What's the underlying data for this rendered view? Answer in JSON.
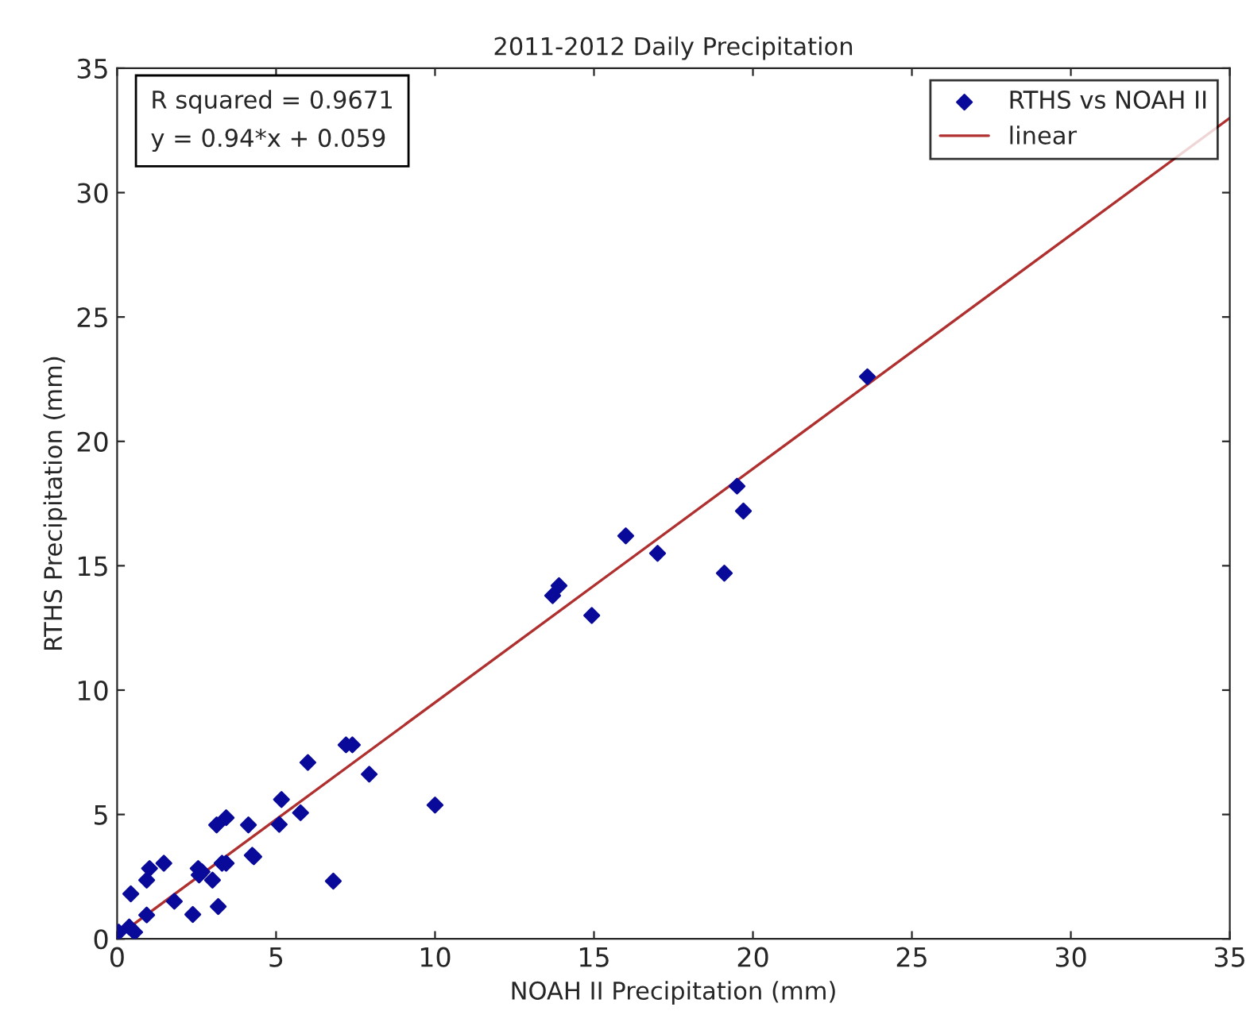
{
  "chart_data": {
    "type": "scatter",
    "title": "2011-2012 Daily Precipitation",
    "xlabel": "NOAH II Precipitation (mm)",
    "ylabel": "RTHS Precipitation (mm)",
    "series": [
      {
        "name": "RTHS vs NOAH II",
        "color": "#0a0a9a",
        "marker": "diamond",
        "x": [
          0.05,
          0.38,
          0.55,
          0.43,
          0.93,
          0.93,
          1.02,
          1.47,
          1.8,
          2.38,
          2.55,
          2.58,
          2.67,
          3.0,
          3.13,
          3.18,
          3.3,
          3.43,
          3.43,
          4.13,
          4.25,
          4.3,
          5.1,
          5.17,
          5.77,
          6.0,
          6.8,
          7.2,
          7.4,
          7.93,
          10.0,
          13.7,
          13.9,
          14.93,
          16.0,
          17.0,
          19.1,
          19.5,
          19.7,
          23.6
        ],
        "values": [
          0.27,
          0.48,
          0.27,
          1.81,
          0.96,
          2.36,
          2.83,
          3.04,
          1.51,
          0.98,
          2.83,
          2.57,
          2.7,
          2.36,
          4.58,
          1.3,
          3.04,
          3.04,
          4.87,
          4.58,
          3.36,
          3.3,
          4.6,
          5.6,
          5.07,
          7.09,
          2.32,
          7.8,
          7.8,
          6.62,
          5.38,
          13.8,
          14.2,
          13.0,
          16.2,
          15.5,
          14.7,
          18.2,
          17.2,
          22.6
        ]
      },
      {
        "name": "linear",
        "type": "line",
        "color": "#b03030",
        "line_style": "solid",
        "x": [
          0,
          35
        ],
        "values": [
          0.1,
          33.0
        ]
      }
    ],
    "xlim": [
      0,
      35
    ],
    "ylim": [
      0,
      35
    ],
    "xticks": [
      0,
      5,
      10,
      15,
      20,
      25,
      30,
      35
    ],
    "yticks": [
      0,
      5,
      10,
      15,
      20,
      25,
      30,
      35
    ],
    "grid": false,
    "legend": "top right",
    "annotations": [
      "R squared = 0.9671\ny = 0.94*x + 0.059"
    ]
  }
}
